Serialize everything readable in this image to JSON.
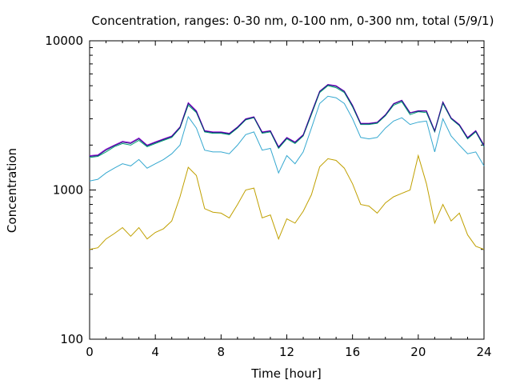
{
  "chart_data": {
    "type": "line",
    "title": "Concentration, ranges: 0-30 nm, 0-100 nm, 0-300 nm, total (5/9/1)",
    "xlabel": "Time [hour]",
    "ylabel": "Concentration",
    "xlim": [
      0,
      24
    ],
    "ylim": [
      100,
      10000
    ],
    "yscale": "log",
    "grid": false,
    "legend": "none",
    "x_ticks": [
      0,
      4,
      8,
      12,
      16,
      20,
      24
    ],
    "x_tick_labels": [
      "0",
      "4",
      "8",
      "12",
      "16",
      "20",
      "24"
    ],
    "y_ticks": [
      100,
      1000,
      10000
    ],
    "y_tick_labels": [
      "100",
      "1000",
      "10000"
    ],
    "x": [
      0,
      0.5,
      1,
      1.5,
      2,
      2.5,
      3,
      3.5,
      4,
      4.5,
      5,
      5.5,
      6,
      6.5,
      7,
      7.5,
      8,
      8.5,
      9,
      9.5,
      10,
      10.5,
      11,
      11.5,
      12,
      12.5,
      13,
      13.5,
      14,
      14.5,
      15,
      15.5,
      16,
      16.5,
      17,
      17.5,
      18,
      18.5,
      19,
      19.5,
      20,
      20.5,
      21,
      21.5,
      22,
      22.5,
      23,
      23.5,
      24
    ],
    "series": [
      {
        "color": "#c0a000",
        "values": [
          400,
          410,
          470,
          510,
          560,
          490,
          560,
          470,
          520,
          550,
          620,
          900,
          1420,
          1250,
          750,
          710,
          700,
          650,
          800,
          1000,
          1030,
          650,
          680,
          470,
          640,
          600,
          720,
          930,
          1430,
          1620,
          1580,
          1400,
          1100,
          800,
          780,
          700,
          820,
          900,
          950,
          1000,
          1700,
          1100,
          600,
          800,
          620,
          700,
          500,
          420,
          400
        ]
      },
      {
        "color": "#35a8d0",
        "values": [
          1150,
          1180,
          1300,
          1400,
          1500,
          1450,
          1600,
          1400,
          1500,
          1600,
          1750,
          2000,
          3100,
          2600,
          1850,
          1800,
          1800,
          1750,
          2000,
          2350,
          2450,
          1850,
          1900,
          1300,
          1700,
          1500,
          1800,
          2600,
          3800,
          4250,
          4150,
          3800,
          3000,
          2250,
          2200,
          2250,
          2600,
          2900,
          3050,
          2750,
          2850,
          2900,
          1800,
          3000,
          2300,
          2000,
          1750,
          1800,
          1450
        ]
      },
      {
        "color": "#009e73",
        "values": [
          1650,
          1680,
          1800,
          1950,
          2050,
          2000,
          2150,
          1950,
          2050,
          2150,
          2250,
          2600,
          3700,
          3300,
          2450,
          2400,
          2400,
          2350,
          2600,
          2950,
          3050,
          2400,
          2450,
          1900,
          2200,
          2050,
          2300,
          3200,
          4500,
          5000,
          4850,
          4500,
          3600,
          2750,
          2750,
          2800,
          3150,
          3700,
          3900,
          3200,
          3350,
          3300,
          2450,
          3800,
          3000,
          2700,
          2200,
          2450,
          1950
        ]
      },
      {
        "color": "#9400d3",
        "values": [
          1700,
          1720,
          1880,
          2000,
          2120,
          2080,
          2230,
          2000,
          2100,
          2200,
          2300,
          2650,
          3850,
          3400,
          2500,
          2450,
          2450,
          2400,
          2650,
          3000,
          3100,
          2450,
          2500,
          1950,
          2250,
          2100,
          2350,
          3300,
          4600,
          5100,
          5000,
          4600,
          3700,
          2800,
          2800,
          2850,
          3200,
          3800,
          4000,
          3300,
          3400,
          3400,
          2500,
          3900,
          3050,
          2750,
          2250,
          2500,
          2000
        ]
      },
      {
        "color": "#1c1c80",
        "values": [
          1680,
          1700,
          1850,
          1980,
          2090,
          2050,
          2200,
          1980,
          2080,
          2180,
          2280,
          2630,
          3800,
          3350,
          2480,
          2430,
          2430,
          2380,
          2630,
          2980,
          3080,
          2430,
          2480,
          1930,
          2230,
          2080,
          2330,
          3270,
          4570,
          5070,
          4950,
          4570,
          3670,
          2780,
          2780,
          2830,
          3180,
          3770,
          3970,
          3280,
          3380,
          3370,
          2480,
          3870,
          3030,
          2730,
          2230,
          2480,
          1980
        ]
      }
    ]
  }
}
